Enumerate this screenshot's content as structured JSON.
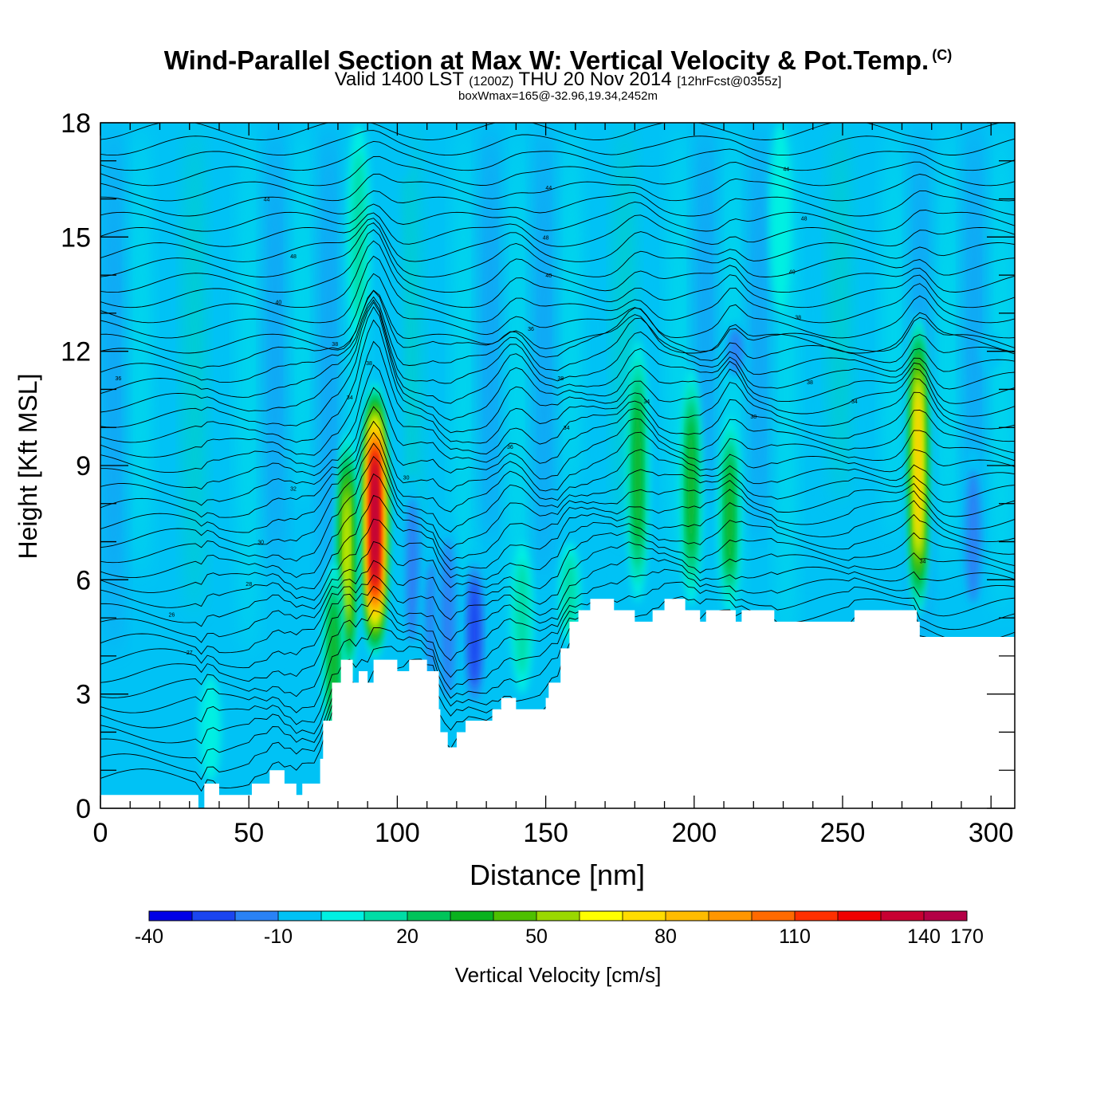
{
  "title": {
    "main": "Wind-Parallel Section at Max W: Vertical Velocity & Pot.Temp.",
    "copyright": "(C)",
    "valid_prefix": "Valid 1400 LST",
    "valid_utc": "(1200Z)",
    "valid_date": "THU 20 Nov 2014",
    "forecast": "[12hrFcst@0355z]",
    "box_wmax": "boxWmax=165@-32.96,19.34,2452m"
  },
  "chart_data": {
    "type": "heatmap",
    "xlabel": "Distance [nm]",
    "ylabel": "Height [Kft MSL]",
    "xlim": [
      0,
      308
    ],
    "ylim": [
      0,
      18
    ],
    "x_ticks": [
      0,
      50,
      100,
      150,
      200,
      250,
      300
    ],
    "y_ticks": [
      0,
      3,
      6,
      9,
      12,
      15,
      18
    ],
    "colorbar": {
      "label": "Vertical Velocity [cm/s]",
      "min": -40,
      "max": 170,
      "step": 10,
      "tick_labels": [
        "-40",
        "-10",
        "20",
        "50",
        "80",
        "110",
        "140",
        "170"
      ],
      "colors": [
        "#0000e6",
        "#1b45f0",
        "#2a82f5",
        "#00c2f5",
        "#00f0e2",
        "#00dca6",
        "#00c45a",
        "#0ab21e",
        "#4ec000",
        "#9ad800",
        "#ffff00",
        "#ffdc00",
        "#ffbc00",
        "#ff9600",
        "#ff6a00",
        "#ff3000",
        "#f00000",
        "#c80032",
        "#b40046"
      ]
    },
    "terrain_top_kft": [
      [
        0,
        0.35
      ],
      [
        31,
        0.35
      ],
      [
        33,
        0.0
      ],
      [
        35,
        0.65
      ],
      [
        39,
        0.65
      ],
      [
        40,
        0.35
      ],
      [
        50,
        0.35
      ],
      [
        51,
        0.65
      ],
      [
        56,
        0.65
      ],
      [
        57,
        1.0
      ],
      [
        61,
        1.0
      ],
      [
        62,
        0.65
      ],
      [
        65,
        0.65
      ],
      [
        66,
        0.35
      ],
      [
        67,
        0.35
      ],
      [
        68,
        0.65
      ],
      [
        73,
        0.65
      ],
      [
        74,
        1.3
      ],
      [
        75,
        2.3
      ],
      [
        77,
        2.3
      ],
      [
        78,
        3.3
      ],
      [
        80,
        3.3
      ],
      [
        81,
        3.9
      ],
      [
        84,
        3.9
      ],
      [
        85,
        3.3
      ],
      [
        86,
        3.3
      ],
      [
        87,
        3.6
      ],
      [
        89,
        3.6
      ],
      [
        90,
        3.3
      ],
      [
        91,
        3.3
      ],
      [
        92,
        3.9
      ],
      [
        99,
        3.9
      ],
      [
        100,
        3.6
      ],
      [
        103,
        3.6
      ],
      [
        104,
        3.9
      ],
      [
        109,
        3.9
      ],
      [
        110,
        3.6
      ],
      [
        113,
        3.6
      ],
      [
        114,
        2.6
      ],
      [
        114.5,
        2.0
      ],
      [
        116,
        2.0
      ],
      [
        117,
        1.6
      ],
      [
        119,
        1.6
      ],
      [
        120,
        2.0
      ],
      [
        122,
        2.0
      ],
      [
        123,
        2.3
      ],
      [
        131,
        2.3
      ],
      [
        132,
        2.6
      ],
      [
        134,
        2.6
      ],
      [
        135,
        2.9
      ],
      [
        139,
        2.9
      ],
      [
        140,
        2.6
      ],
      [
        149,
        2.6
      ],
      [
        150,
        2.9
      ],
      [
        151,
        3.3
      ],
      [
        154,
        3.3
      ],
      [
        155,
        4.2
      ],
      [
        157,
        4.2
      ],
      [
        158,
        4.9
      ],
      [
        160,
        4.9
      ],
      [
        161,
        5.2
      ],
      [
        164,
        5.2
      ],
      [
        165,
        5.5
      ],
      [
        172,
        5.5
      ],
      [
        173,
        5.2
      ],
      [
        179,
        5.2
      ],
      [
        180,
        4.9
      ],
      [
        185,
        4.9
      ],
      [
        186,
        5.2
      ],
      [
        189,
        5.2
      ],
      [
        190,
        5.5
      ],
      [
        196,
        5.5
      ],
      [
        197,
        5.2
      ],
      [
        201,
        5.2
      ],
      [
        202,
        4.9
      ],
      [
        203,
        4.9
      ],
      [
        204,
        5.2
      ],
      [
        213,
        5.2
      ],
      [
        214,
        4.9
      ],
      [
        215,
        4.9
      ],
      [
        216,
        5.2
      ],
      [
        226,
        5.2
      ],
      [
        227,
        4.9
      ],
      [
        253,
        4.9
      ],
      [
        254,
        5.2
      ],
      [
        274,
        5.2
      ],
      [
        275,
        4.9
      ],
      [
        276,
        4.5
      ],
      [
        308,
        4.5
      ]
    ],
    "updraft_cores": [
      {
        "x": 92.5,
        "z_base": 3.9,
        "z_top": 11.2,
        "peak_cm_s": 165
      },
      {
        "x": 83,
        "z_base": 3.3,
        "z_top": 9.9,
        "peak_cm_s": 70
      },
      {
        "x": 78.5,
        "z_base": 1.5,
        "z_top": 6.5,
        "peak_cm_s": 45
      },
      {
        "x": 275.5,
        "z_base": 5.0,
        "z_top": 13.0,
        "peak_cm_s": 90
      },
      {
        "x": 181,
        "z_base": 5.4,
        "z_top": 12.3,
        "peak_cm_s": 45
      },
      {
        "x": 199,
        "z_base": 5.3,
        "z_top": 11.6,
        "peak_cm_s": 40
      },
      {
        "x": 212,
        "z_base": 5.1,
        "z_top": 10.3,
        "peak_cm_s": 40
      },
      {
        "x": 142,
        "z_base": 3.0,
        "z_top": 7.0,
        "peak_cm_s": 20
      },
      {
        "x": 158,
        "z_base": 4.3,
        "z_top": 7.0,
        "peak_cm_s": 22
      },
      {
        "x": 37,
        "z_base": 0.7,
        "z_top": 3.5,
        "peak_cm_s": 18
      },
      {
        "x": 87,
        "z_base": 12.0,
        "z_top": 18.0,
        "peak_cm_s": 20
      },
      {
        "x": 229,
        "z_base": 13.0,
        "z_top": 18.0,
        "peak_cm_s": 14
      }
    ],
    "downdraft_cores": [
      {
        "x": 105,
        "z_base": 3.7,
        "z_top": 8.8,
        "peak_cm_s": -25
      },
      {
        "x": 112,
        "z_base": 3.0,
        "z_top": 7.0,
        "peak_cm_s": -22
      },
      {
        "x": 126,
        "z_base": 2.4,
        "z_top": 6.8,
        "peak_cm_s": -30
      },
      {
        "x": 117,
        "z_base": 2.2,
        "z_top": 7.8,
        "peak_cm_s": -22
      },
      {
        "x": 98,
        "z_base": 0.0,
        "z_top": 18.0,
        "peak_cm_s": -15
      },
      {
        "x": 164,
        "z_base": 5.5,
        "z_top": 9.0,
        "peak_cm_s": -18
      },
      {
        "x": 294,
        "z_base": 4.8,
        "z_top": 9.5,
        "peak_cm_s": -22
      },
      {
        "x": 214,
        "z_base": 11.2,
        "z_top": 12.8,
        "peak_cm_s": -25
      },
      {
        "x": 67,
        "z_base": 0.5,
        "z_top": 3.8,
        "peak_cm_s": -18
      },
      {
        "x": 47,
        "z_base": 0.3,
        "z_top": 3.4,
        "peak_cm_s": -15
      },
      {
        "x": 101,
        "z_base": 16.5,
        "z_top": 18.0,
        "peak_cm_s": -15
      },
      {
        "x": 300,
        "z_base": 11.5,
        "z_top": 12.5,
        "peak_cm_s": -18
      }
    ],
    "theta_contour_labels": [
      {
        "x": 6,
        "z": 11.3,
        "text": "36"
      },
      {
        "x": 56,
        "z": 16.0,
        "text": "44"
      },
      {
        "x": 65,
        "z": 14.5,
        "text": "48"
      },
      {
        "x": 60,
        "z": 13.3,
        "text": "40"
      },
      {
        "x": 79,
        "z": 12.2,
        "text": "38"
      },
      {
        "x": 90.5,
        "z": 11.7,
        "text": "38"
      },
      {
        "x": 84,
        "z": 10.8,
        "text": "34"
      },
      {
        "x": 65,
        "z": 8.4,
        "text": "32"
      },
      {
        "x": 54,
        "z": 7.0,
        "text": "30"
      },
      {
        "x": 50,
        "z": 5.9,
        "text": "28"
      },
      {
        "x": 24,
        "z": 5.1,
        "text": "26"
      },
      {
        "x": 30,
        "z": 4.1,
        "text": "27"
      },
      {
        "x": 103,
        "z": 8.7,
        "text": "30"
      },
      {
        "x": 138,
        "z": 9.5,
        "text": "36"
      },
      {
        "x": 151,
        "z": 16.3,
        "text": "44"
      },
      {
        "x": 150,
        "z": 15.0,
        "text": "48"
      },
      {
        "x": 151,
        "z": 14.0,
        "text": "40"
      },
      {
        "x": 145,
        "z": 12.6,
        "text": "36"
      },
      {
        "x": 155,
        "z": 11.3,
        "text": "38"
      },
      {
        "x": 157,
        "z": 10.0,
        "text": "34"
      },
      {
        "x": 184,
        "z": 10.7,
        "text": "34"
      },
      {
        "x": 231,
        "z": 16.8,
        "text": "44"
      },
      {
        "x": 237,
        "z": 15.5,
        "text": "48"
      },
      {
        "x": 233,
        "z": 14.1,
        "text": "40"
      },
      {
        "x": 235,
        "z": 12.9,
        "text": "38"
      },
      {
        "x": 239,
        "z": 11.2,
        "text": "38"
      },
      {
        "x": 220,
        "z": 10.3,
        "text": "38"
      },
      {
        "x": 254,
        "z": 10.7,
        "text": "34"
      },
      {
        "x": 277,
        "z": 6.5,
        "text": "34"
      }
    ]
  }
}
